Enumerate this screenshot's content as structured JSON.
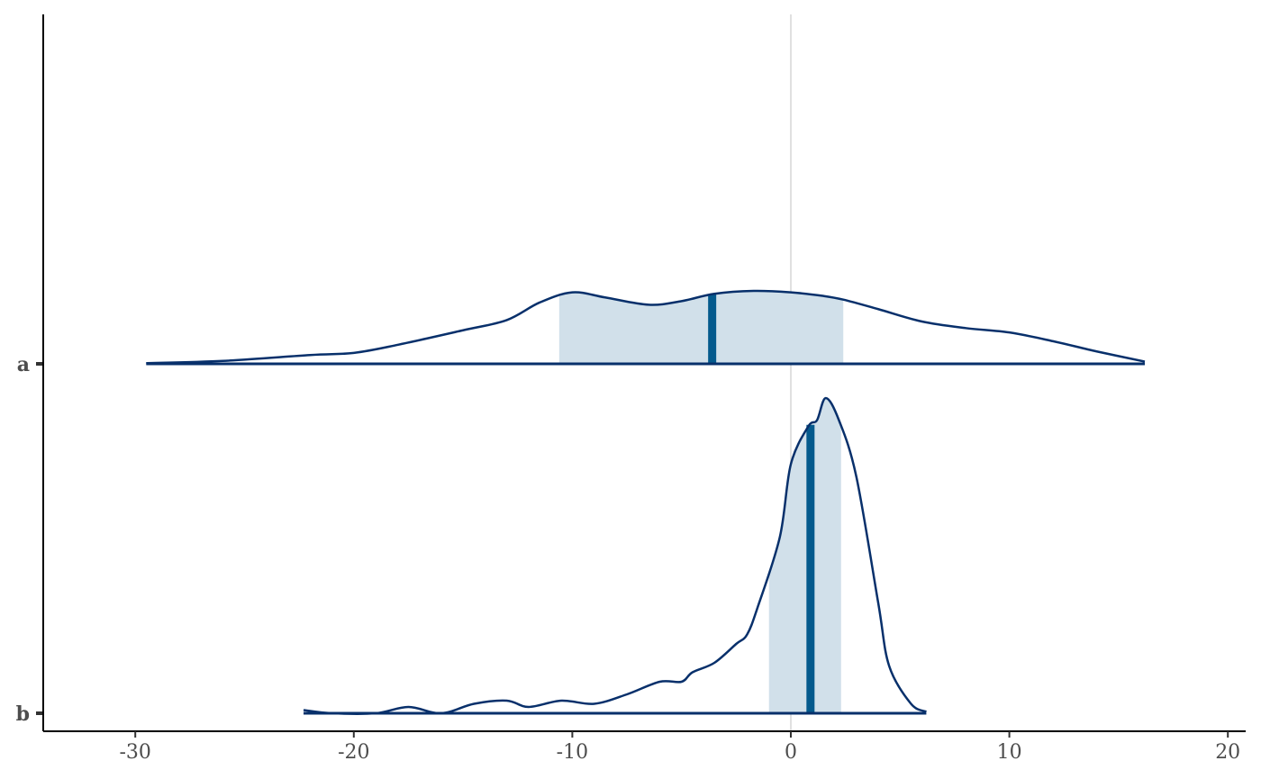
{
  "chart_data": {
    "type": "area",
    "title": "",
    "xlabel": "",
    "ylabel": "",
    "xlim": [
      -34,
      20.5
    ],
    "x_ticks": [
      -30,
      -20,
      -10,
      0,
      10,
      20
    ],
    "x_tick_labels": [
      "-30",
      "-20",
      "-10",
      "0",
      "10",
      "20"
    ],
    "reference_line_x": 0,
    "grid": false,
    "colors": {
      "outline": "#08306b",
      "interval_fill": "#d1e0ea",
      "median_line": "#045a8d",
      "reference_line": "#e0e0e0"
    },
    "series": [
      {
        "name": "a",
        "median": -3.6,
        "interval": [
          -10.6,
          2.4
        ],
        "range": [
          -29.5,
          16.2
        ],
        "density": [
          [
            -29.5,
            0.01
          ],
          [
            -26,
            0.04
          ],
          [
            -22,
            0.12
          ],
          [
            -20,
            0.15
          ],
          [
            -18,
            0.26
          ],
          [
            -15,
            0.46
          ],
          [
            -13,
            0.6
          ],
          [
            -11.5,
            0.84
          ],
          [
            -10,
            0.98
          ],
          [
            -8.5,
            0.91
          ],
          [
            -6.5,
            0.81
          ],
          [
            -5,
            0.86
          ],
          [
            -3.5,
            0.96
          ],
          [
            -1.7,
            1.0
          ],
          [
            0,
            0.98
          ],
          [
            1.5,
            0.93
          ],
          [
            2.4,
            0.88
          ],
          [
            4,
            0.75
          ],
          [
            6,
            0.58
          ],
          [
            8,
            0.49
          ],
          [
            10,
            0.43
          ],
          [
            12,
            0.31
          ],
          [
            14,
            0.17
          ],
          [
            16.2,
            0.03
          ]
        ]
      },
      {
        "name": "b",
        "median": 0.9,
        "interval": [
          -1,
          2.3
        ],
        "range": [
          -22.3,
          6.2
        ],
        "density": [
          [
            -22.3,
            0.01
          ],
          [
            -21,
            0.0
          ],
          [
            -19,
            0.0
          ],
          [
            -17.5,
            0.02
          ],
          [
            -16,
            0.0
          ],
          [
            -14.5,
            0.03
          ],
          [
            -13,
            0.04
          ],
          [
            -12,
            0.02
          ],
          [
            -10.5,
            0.04
          ],
          [
            -9,
            0.03
          ],
          [
            -7.5,
            0.06
          ],
          [
            -6,
            0.1
          ],
          [
            -5,
            0.1
          ],
          [
            -4.5,
            0.13
          ],
          [
            -3.5,
            0.16
          ],
          [
            -2.5,
            0.22
          ],
          [
            -2,
            0.25
          ],
          [
            -1.5,
            0.34
          ],
          [
            -0.5,
            0.56
          ],
          [
            0,
            0.79
          ],
          [
            0.8,
            0.91
          ],
          [
            1.2,
            0.93
          ],
          [
            1.6,
            1.0
          ],
          [
            2.2,
            0.93
          ],
          [
            3,
            0.75
          ],
          [
            4,
            0.35
          ],
          [
            4.5,
            0.15
          ],
          [
            5.5,
            0.03
          ],
          [
            6.2,
            0.005
          ]
        ]
      }
    ]
  }
}
